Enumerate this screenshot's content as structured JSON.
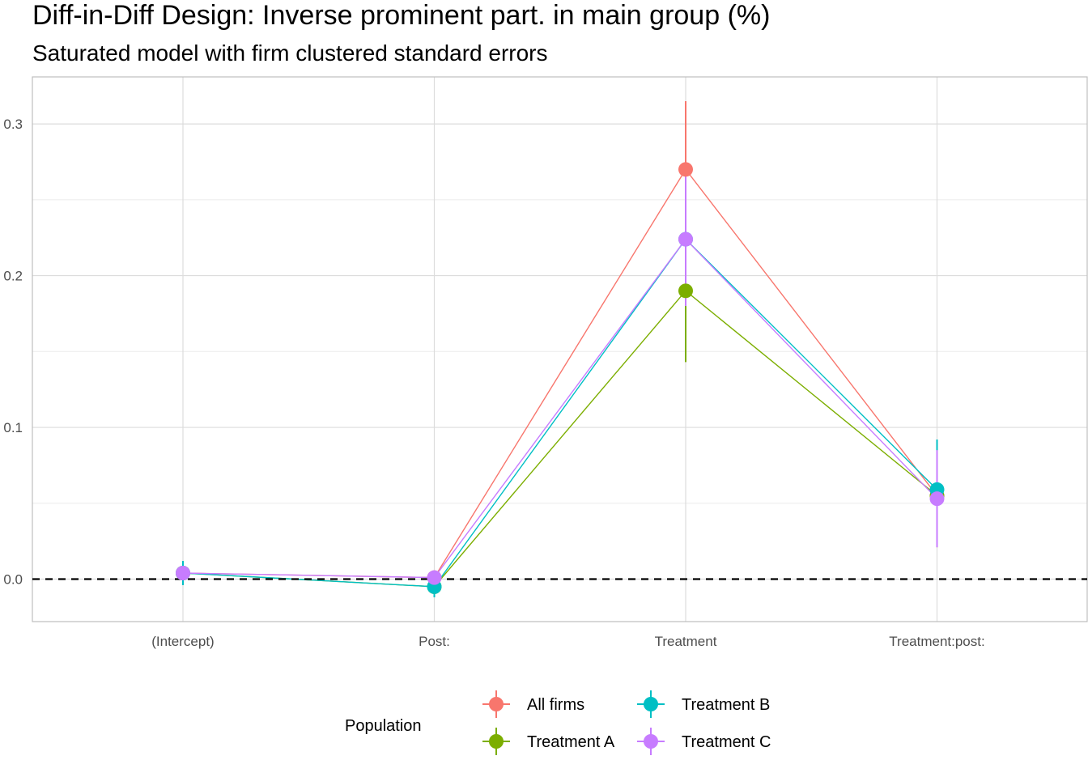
{
  "chart_data": {
    "type": "scatter",
    "title": "Diff-in-Diff Design: Inverse prominent part. in main group (%)",
    "subtitle": "Saturated model with firm clustered standard errors",
    "xlabel": "",
    "ylabel": "",
    "categories": [
      "(Intercept)",
      "Post:",
      "Treatment",
      "Treatment:post:"
    ],
    "ylim": [
      -0.028,
      0.331
    ],
    "yticks": [
      0.0,
      0.1,
      0.2,
      0.3
    ],
    "ytick_labels": [
      "0.0",
      "0.1",
      "0.2",
      "0.3"
    ],
    "grid": true,
    "reference_line": {
      "y": 0,
      "style": "dashed"
    },
    "legend": {
      "title": "Population",
      "position": "bottom"
    },
    "series": [
      {
        "name": "All firms",
        "color": "#F8766D",
        "values": [
          0.004,
          0.001,
          0.27,
          0.055
        ],
        "lower": [
          0.001,
          -0.001,
          0.225,
          0.021
        ],
        "upper": [
          0.007,
          0.003,
          0.315,
          0.089
        ]
      },
      {
        "name": "Treatment A",
        "color": "#7CAE00",
        "values": [
          0.004,
          -0.005,
          0.19,
          0.055
        ],
        "lower": [
          0.0,
          -0.009,
          0.143,
          0.03
        ],
        "upper": [
          0.008,
          -0.001,
          0.237,
          0.08
        ]
      },
      {
        "name": "Treatment B",
        "color": "#00BFC4",
        "values": [
          0.004,
          -0.005,
          0.224,
          0.059
        ],
        "lower": [
          -0.004,
          -0.012,
          0.18,
          0.027
        ],
        "upper": [
          0.012,
          0.002,
          0.268,
          0.092
        ]
      },
      {
        "name": "Treatment C",
        "color": "#C77CFF",
        "values": [
          0.004,
          0.001,
          0.224,
          0.053
        ],
        "lower": [
          0.001,
          -0.001,
          0.18,
          0.021
        ],
        "upper": [
          0.007,
          0.003,
          0.268,
          0.085
        ]
      }
    ]
  }
}
